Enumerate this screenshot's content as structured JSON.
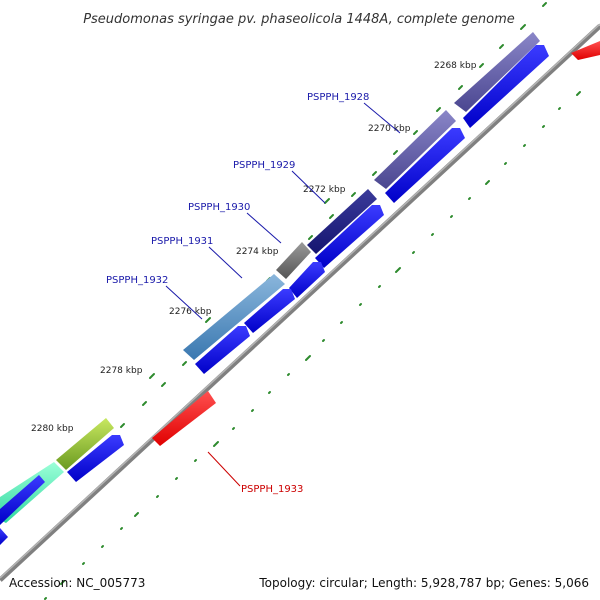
{
  "title": "Pseudomonas syringae pv. phaseolicola 1448A, complete genome",
  "footer": {
    "accession": "Accession: NC_005773",
    "summary": "Topology: circular; Length: 5,928,787 bp; Genes: 5,066"
  },
  "colors": {
    "backbone": "#808080",
    "tick": "#2e8b2e",
    "cds": "#0000ee",
    "red": "#ff0000",
    "label_blue": "#1a1aaa",
    "label_red": "#cc0000"
  },
  "kbp_labels": [
    "2268 kbp",
    "2270 kbp",
    "2272 kbp",
    "2274 kbp",
    "2276 kbp",
    "2278 kbp",
    "2280 kbp"
  ],
  "genes": [
    {
      "name": "PSPPH_1928",
      "color": "#cc0000"
    },
    {
      "name": "PSPPH_1929",
      "color": "#1a1aaa"
    },
    {
      "name": "PSPPH_1930",
      "color": "#1a1aaa"
    },
    {
      "name": "PSPPH_1931",
      "color": "#1a1aaa"
    },
    {
      "name": "PSPPH_1932",
      "color": "#1a1aaa"
    },
    {
      "name": "PSPPH_1933",
      "color": "#cc0000"
    }
  ]
}
